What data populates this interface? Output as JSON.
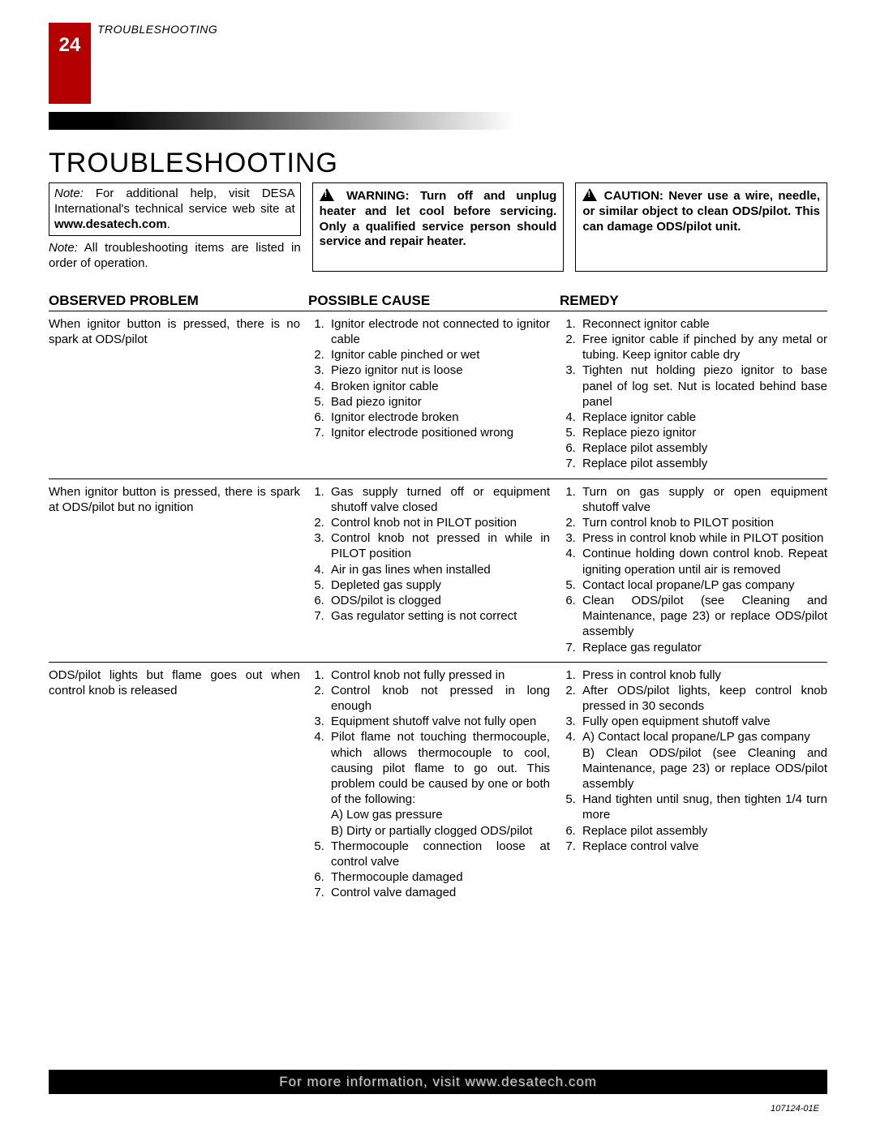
{
  "page_number": "24",
  "running_head": "TROUBLESHOOTING",
  "title": "TROUBLESHOOTING",
  "note_box": {
    "prefix": "Note:",
    "body": " For additional help, visit DESA International's technical service web site at ",
    "link": "www.desatech.com",
    "suffix": "."
  },
  "order_note": {
    "prefix": "Note:",
    "body": " All troubleshooting items are listed in order of operation."
  },
  "warning_box": " WARNING: Turn off and unplug heater and let cool before servicing. Only a qualified service person should service and repair heater.",
  "caution_box": " CAUTION: Never use a wire, needle, or similar object to clean ODS/pilot. This can damage ODS/pilot unit.",
  "headers": {
    "c1": "OBSERVED PROBLEM",
    "c2": "POSSIBLE CAUSE",
    "c3": "REMEDY"
  },
  "rows": [
    {
      "problem": "When ignitor button is pressed, there is no spark at ODS/pilot",
      "causes": [
        "Ignitor electrode not connected to ignitor cable",
        "Ignitor cable pinched or wet",
        "Piezo ignitor nut is loose",
        "Broken ignitor cable",
        "Bad piezo ignitor",
        "Ignitor electrode broken",
        "Ignitor electrode positioned wrong"
      ],
      "remedies": [
        "Reconnect ignitor cable",
        "Free ignitor cable if pinched by any metal or tubing. Keep ignitor cable dry",
        "Tighten nut holding piezo ignitor to base panel of log set. Nut is located behind base panel",
        "Replace ignitor cable",
        "Replace piezo ignitor",
        "Replace pilot assembly",
        "Replace pilot assembly"
      ]
    },
    {
      "problem": "When ignitor button is pressed, there is spark at ODS/pilot but no ignition",
      "causes": [
        "Gas supply turned off or equipment shutoff valve closed",
        "Control knob not in PILOT position",
        "Control knob not pressed in while in PILOT position",
        "Air in gas lines when installed",
        "Depleted gas supply",
        "ODS/pilot is clogged",
        "Gas regulator setting is not correct"
      ],
      "remedies": [
        "Turn on gas supply or open equipment shutoff valve",
        "Turn control knob to PILOT position",
        "Press in control knob while in PILOT position",
        "Continue holding down control knob. Repeat igniting operation until air is removed",
        "Contact local propane/LP gas company",
        "Clean ODS/pilot (see Cleaning and Maintenance, page 23) or replace ODS/pilot assembly",
        "Replace gas regulator"
      ]
    },
    {
      "problem": "ODS/pilot lights but flame goes out when control knob is released",
      "causes": [
        "Control knob not fully pressed in",
        "Control knob not pressed in long enough",
        "Equipment shutoff valve not fully open",
        "Pilot flame not touching thermocouple, which allows thermocouple to cool, causing pilot flame to go out. This problem could be caused by one or both of the following:\nA) Low gas pressure\nB) Dirty or partially clogged ODS/pilot",
        "Thermocouple connection loose at control valve",
        "Thermocouple damaged",
        "Control valve damaged"
      ],
      "remedies": [
        "Press in control knob fully",
        "After ODS/pilot lights, keep control knob pressed in 30 seconds",
        "Fully open equipment shutoff valve",
        "A) Contact local propane/LP gas company\n\nB) Clean ODS/pilot (see Cleaning and Maintenance, page 23) or replace ODS/pilot assembly",
        "Hand tighten until snug, then tighten 1/4 turn more",
        "Replace pilot assembly",
        "Replace control valve"
      ]
    }
  ],
  "footer": "For more information, visit www.desatech.com",
  "doc_id": "107124-01E",
  "colors": {
    "accent": "#b40000",
    "black": "#000000",
    "footer_text": "#c8c8c8"
  }
}
